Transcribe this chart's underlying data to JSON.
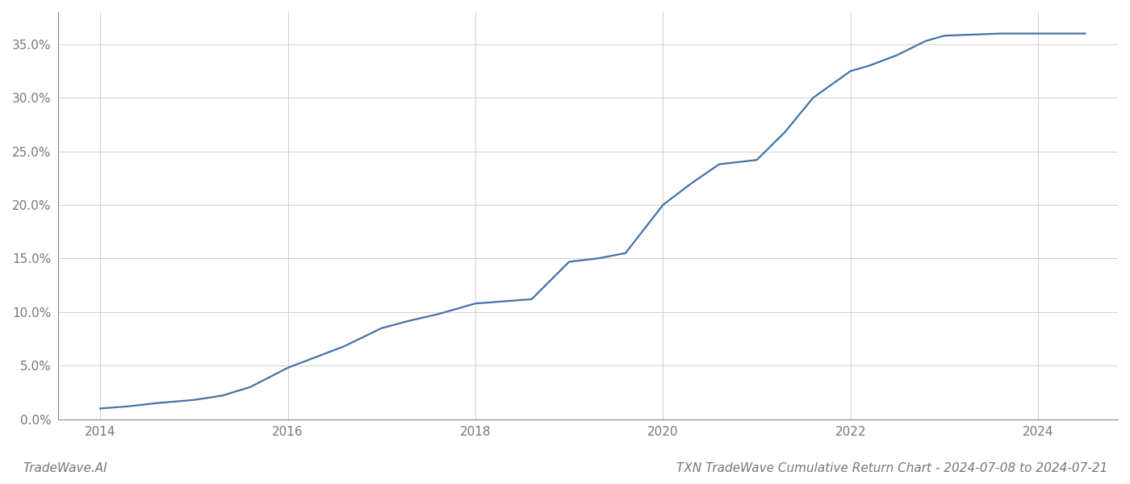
{
  "title": "TXN TradeWave Cumulative Return Chart - 2024-07-08 to 2024-07-21",
  "watermark": "TradeWave.AI",
  "line_color": "#4472a8",
  "background_color": "#ffffff",
  "grid_color": "#d0d0d0",
  "x_tick_years": [
    2014,
    2016,
    2018,
    2020,
    2022,
    2024
  ],
  "data_points": {
    "years": [
      2014.0,
      2014.3,
      2014.6,
      2015.0,
      2015.3,
      2015.6,
      2016.0,
      2016.3,
      2016.6,
      2017.0,
      2017.3,
      2017.6,
      2018.0,
      2018.3,
      2018.6,
      2019.0,
      2019.3,
      2019.6,
      2020.0,
      2020.3,
      2020.6,
      2021.0,
      2021.3,
      2021.6,
      2022.0,
      2022.2,
      2022.5,
      2022.8,
      2023.0,
      2023.3,
      2023.6,
      2024.0,
      2024.5
    ],
    "values": [
      0.01,
      0.012,
      0.015,
      0.018,
      0.022,
      0.03,
      0.048,
      0.058,
      0.068,
      0.085,
      0.092,
      0.098,
      0.108,
      0.11,
      0.112,
      0.147,
      0.15,
      0.155,
      0.2,
      0.22,
      0.238,
      0.242,
      0.268,
      0.3,
      0.325,
      0.33,
      0.34,
      0.353,
      0.358,
      0.359,
      0.36,
      0.36,
      0.36
    ]
  },
  "ylim": [
    0.0,
    0.38
  ],
  "xlim": [
    2013.55,
    2024.85
  ],
  "yticks": [
    0.0,
    0.05,
    0.1,
    0.15,
    0.2,
    0.25,
    0.3,
    0.35
  ],
  "ytick_labels": [
    "0.0%",
    "5.0%",
    "10.0%",
    "15.0%",
    "20.0%",
    "25.0%",
    "30.0%",
    "35.0%"
  ],
  "line_width": 1.6,
  "title_fontsize": 11,
  "watermark_fontsize": 11,
  "tick_fontsize": 11,
  "axis_color": "#888888",
  "text_color": "#777777"
}
